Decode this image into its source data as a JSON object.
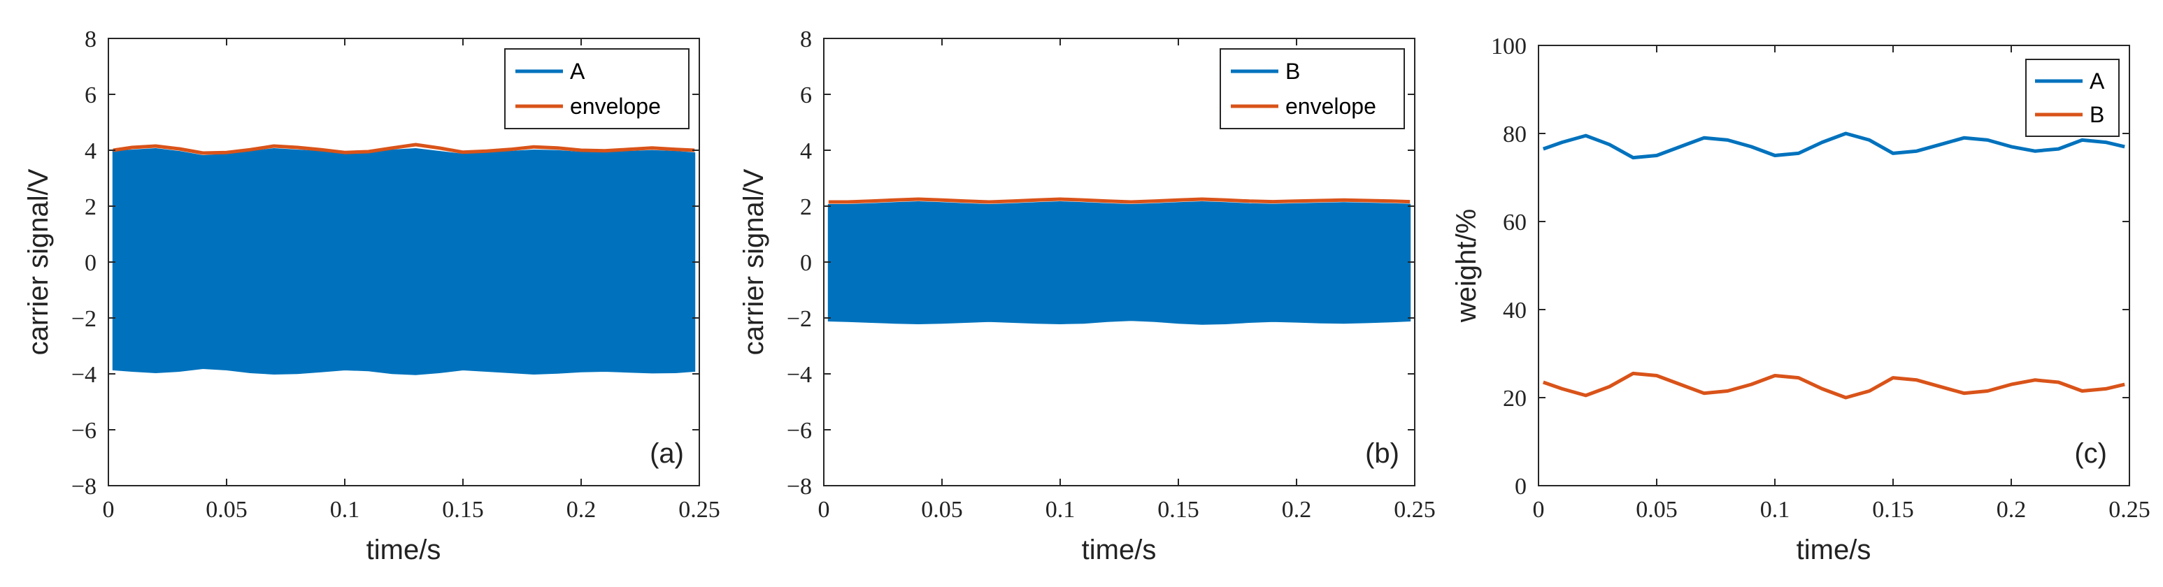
{
  "colors": {
    "blue": "#0072BD",
    "orange": "#D95319",
    "axis": "#262626",
    "background": "#ffffff"
  },
  "chart_data": [
    {
      "type": "area",
      "panel": "(a)",
      "xlabel": "time/s",
      "ylabel": "carrier signal/V",
      "xlim": [
        0,
        0.25
      ],
      "ylim": [
        -8,
        8
      ],
      "xticks": [
        0,
        0.05,
        0.1,
        0.15,
        0.2,
        0.25
      ],
      "xtick_labels": [
        "0",
        "0.05",
        "0.1",
        "0.15",
        "0.2",
        "0.25"
      ],
      "yticks": [
        -8,
        -6,
        -4,
        -2,
        0,
        2,
        4,
        6,
        8
      ],
      "ytick_labels": [
        "−8",
        "−6",
        "−4",
        "−2",
        "0",
        "2",
        "4",
        "6",
        "8"
      ],
      "legend": [
        "A",
        "envelope"
      ],
      "legend_position": "top-right",
      "x": [
        0.002,
        0.01,
        0.02,
        0.03,
        0.04,
        0.05,
        0.06,
        0.07,
        0.08,
        0.09,
        0.1,
        0.11,
        0.12,
        0.13,
        0.14,
        0.15,
        0.16,
        0.17,
        0.18,
        0.19,
        0.2,
        0.21,
        0.22,
        0.23,
        0.24,
        0.248
      ],
      "series": [
        {
          "name": "A",
          "type": "band",
          "color_key": "blue",
          "upper": [
            3.95,
            4.0,
            4.05,
            3.95,
            3.8,
            3.85,
            3.95,
            4.05,
            4.0,
            3.95,
            3.85,
            3.9,
            4.0,
            4.05,
            3.95,
            3.85,
            3.9,
            3.95,
            4.0,
            3.98,
            3.92,
            3.9,
            3.95,
            3.98,
            3.95,
            3.9
          ],
          "lower": [
            -3.85,
            -3.9,
            -3.95,
            -3.9,
            -3.8,
            -3.85,
            -3.95,
            -4.0,
            -3.98,
            -3.92,
            -3.85,
            -3.88,
            -3.98,
            -4.02,
            -3.95,
            -3.85,
            -3.9,
            -3.95,
            -4.0,
            -3.97,
            -3.92,
            -3.9,
            -3.93,
            -3.96,
            -3.95,
            -3.9
          ]
        },
        {
          "name": "envelope",
          "type": "line",
          "color_key": "orange",
          "values": [
            4.0,
            4.1,
            4.15,
            4.05,
            3.9,
            3.92,
            4.02,
            4.15,
            4.1,
            4.02,
            3.92,
            3.95,
            4.08,
            4.2,
            4.08,
            3.93,
            3.97,
            4.03,
            4.12,
            4.08,
            4.0,
            3.98,
            4.03,
            4.08,
            4.03,
            4.0
          ]
        }
      ]
    },
    {
      "type": "area",
      "panel": "(b)",
      "xlabel": "time/s",
      "ylabel": "carrier signal/V",
      "xlim": [
        0,
        0.25
      ],
      "ylim": [
        -8,
        8
      ],
      "xticks": [
        0,
        0.05,
        0.1,
        0.15,
        0.2,
        0.25
      ],
      "xtick_labels": [
        "0",
        "0.05",
        "0.1",
        "0.15",
        "0.2",
        "0.25"
      ],
      "yticks": [
        -8,
        -6,
        -4,
        -2,
        0,
        2,
        4,
        6,
        8
      ],
      "ytick_labels": [
        "−8",
        "−6",
        "−4",
        "−2",
        "0",
        "2",
        "4",
        "6",
        "8"
      ],
      "legend": [
        "B",
        "envelope"
      ],
      "legend_position": "top-right",
      "x": [
        0.002,
        0.01,
        0.02,
        0.03,
        0.04,
        0.05,
        0.06,
        0.07,
        0.08,
        0.09,
        0.1,
        0.11,
        0.12,
        0.13,
        0.14,
        0.15,
        0.16,
        0.17,
        0.18,
        0.19,
        0.2,
        0.21,
        0.22,
        0.23,
        0.24,
        0.248
      ],
      "series": [
        {
          "name": "B",
          "type": "band",
          "color_key": "blue",
          "upper": [
            2.05,
            2.05,
            2.08,
            2.12,
            2.15,
            2.12,
            2.08,
            2.05,
            2.08,
            2.12,
            2.15,
            2.12,
            2.08,
            2.05,
            2.08,
            2.12,
            2.15,
            2.12,
            2.08,
            2.06,
            2.08,
            2.1,
            2.12,
            2.1,
            2.08,
            2.06
          ],
          "lower": [
            -2.1,
            -2.12,
            -2.15,
            -2.18,
            -2.2,
            -2.18,
            -2.15,
            -2.12,
            -2.15,
            -2.18,
            -2.2,
            -2.18,
            -2.12,
            -2.08,
            -2.12,
            -2.18,
            -2.22,
            -2.2,
            -2.15,
            -2.12,
            -2.14,
            -2.17,
            -2.18,
            -2.16,
            -2.13,
            -2.1
          ]
        },
        {
          "name": "envelope",
          "type": "line",
          "color_key": "orange",
          "values": [
            2.15,
            2.15,
            2.18,
            2.22,
            2.25,
            2.22,
            2.18,
            2.15,
            2.18,
            2.22,
            2.25,
            2.22,
            2.18,
            2.15,
            2.18,
            2.22,
            2.25,
            2.22,
            2.18,
            2.16,
            2.18,
            2.2,
            2.22,
            2.2,
            2.18,
            2.16
          ]
        }
      ]
    },
    {
      "type": "line",
      "panel": "(c)",
      "xlabel": "time/s",
      "ylabel": "weight/%",
      "xlim": [
        0,
        0.25
      ],
      "ylim": [
        0,
        100
      ],
      "xticks": [
        0,
        0.05,
        0.1,
        0.15,
        0.2,
        0.25
      ],
      "xtick_labels": [
        "0",
        "0.05",
        "0.1",
        "0.15",
        "0.2",
        "0.25"
      ],
      "yticks": [
        0,
        20,
        40,
        60,
        80,
        100
      ],
      "ytick_labels": [
        "0",
        "20",
        "40",
        "60",
        "80",
        "100"
      ],
      "legend": [
        "A",
        "B"
      ],
      "legend_position": "top-right",
      "x": [
        0.002,
        0.01,
        0.02,
        0.03,
        0.04,
        0.05,
        0.06,
        0.07,
        0.08,
        0.09,
        0.1,
        0.11,
        0.12,
        0.13,
        0.14,
        0.15,
        0.16,
        0.17,
        0.18,
        0.19,
        0.2,
        0.21,
        0.22,
        0.23,
        0.24,
        0.248
      ],
      "series": [
        {
          "name": "A",
          "color_key": "blue",
          "values": [
            76.5,
            78,
            79.5,
            77.5,
            74.5,
            75,
            77,
            79,
            78.5,
            77,
            75,
            75.5,
            78,
            80,
            78.5,
            75.5,
            76,
            77.5,
            79,
            78.5,
            77,
            76,
            76.5,
            78.5,
            78,
            77
          ]
        },
        {
          "name": "B",
          "color_key": "orange",
          "values": [
            23.5,
            22,
            20.5,
            22.5,
            25.5,
            25,
            23,
            21,
            21.5,
            23,
            25,
            24.5,
            22,
            20,
            21.5,
            24.5,
            24,
            22.5,
            21,
            21.5,
            23,
            24,
            23.5,
            21.5,
            22,
            23
          ]
        }
      ]
    }
  ]
}
